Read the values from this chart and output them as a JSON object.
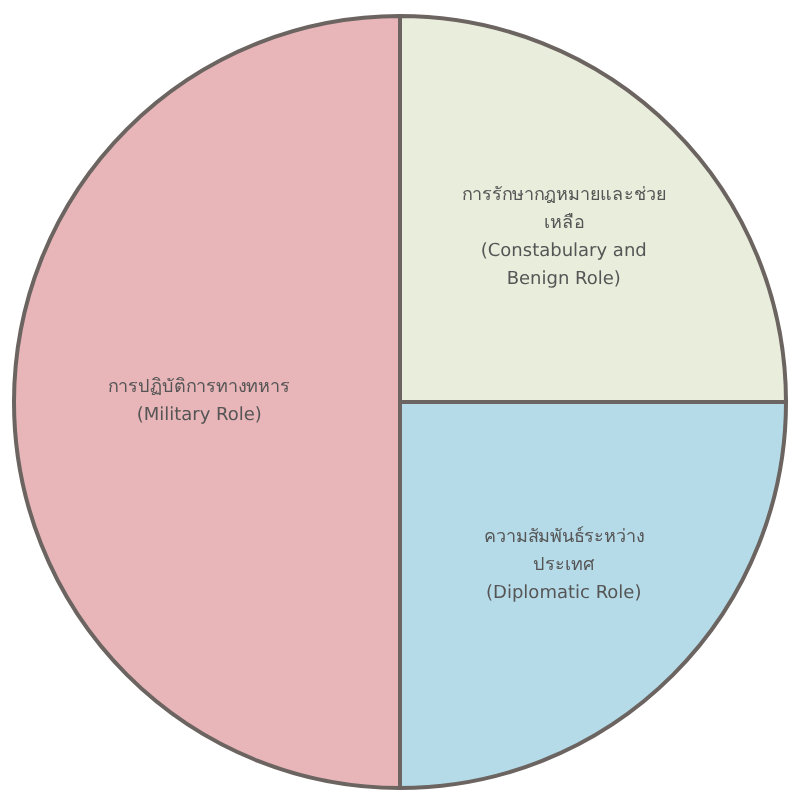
{
  "chart_data": {
    "type": "pie",
    "categories": [
      "การปฏิบัติการทางทหาร (Military Role)",
      "การรักษากฎหมายและช่วยเหลือ (Constabulary and Benign Role)",
      "ความสัมพันธ์ระหว่างประเทศ (Diplomatic Role)"
    ],
    "values": [
      50,
      25,
      25
    ],
    "colors": [
      "#e8b5b9",
      "#e9eddc",
      "#b6dbe8"
    ]
  }
}
